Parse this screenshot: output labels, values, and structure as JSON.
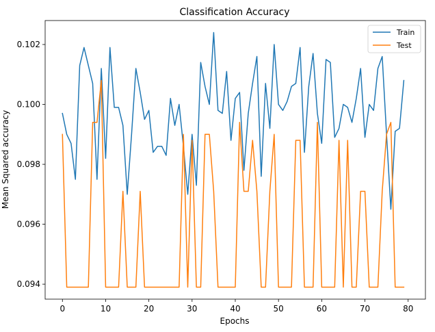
{
  "chart_data": {
    "type": "line",
    "title": "Classification Accuracy",
    "xlabel": "Epochs",
    "ylabel": "Mean Squared accuracy",
    "xlim": [
      -4,
      84
    ],
    "ylim": [
      0.0935,
      0.1028
    ],
    "xticks": [
      0,
      10,
      20,
      30,
      40,
      50,
      60,
      70,
      80
    ],
    "yticks": [
      0.094,
      0.096,
      0.098,
      0.1,
      0.102
    ],
    "ytick_labels": [
      "0.094",
      "0.096",
      "0.098",
      "0.100",
      "0.102"
    ],
    "grid": false,
    "legend_position": "top-right",
    "x": [
      0,
      1,
      2,
      3,
      4,
      5,
      6,
      7,
      8,
      9,
      10,
      11,
      12,
      13,
      14,
      15,
      16,
      17,
      18,
      19,
      20,
      21,
      22,
      23,
      24,
      25,
      26,
      27,
      28,
      29,
      30,
      31,
      32,
      33,
      34,
      35,
      36,
      37,
      38,
      39,
      40,
      41,
      42,
      43,
      44,
      45,
      46,
      47,
      48,
      49,
      50,
      51,
      52,
      53,
      54,
      55,
      56,
      57,
      58,
      59,
      60,
      61,
      62,
      63,
      64,
      65,
      66,
      67,
      68,
      69,
      70,
      71,
      72,
      73,
      74,
      75,
      76,
      77,
      78,
      79
    ],
    "series": [
      {
        "name": "Train",
        "color": "#1f77b4",
        "values": [
          0.0997,
          0.099,
          0.0987,
          0.0975,
          0.1013,
          0.1019,
          0.1013,
          0.1007,
          0.0975,
          0.1012,
          0.0982,
          0.1019,
          0.0999,
          0.0999,
          0.0993,
          0.097,
          0.099,
          0.1012,
          0.1004,
          0.0995,
          0.0998,
          0.0984,
          0.0986,
          0.0986,
          0.0983,
          0.1002,
          0.0993,
          0.1,
          0.0986,
          0.097,
          0.099,
          0.0973,
          0.1014,
          0.1006,
          0.1,
          0.1024,
          0.0998,
          0.0997,
          0.1011,
          0.0988,
          0.1002,
          0.1004,
          0.0978,
          0.0997,
          0.1007,
          0.1016,
          0.0976,
          0.1007,
          0.0992,
          0.102,
          0.1,
          0.0998,
          0.1001,
          0.1006,
          0.1007,
          0.1019,
          0.0984,
          0.1006,
          0.1017,
          0.0997,
          0.0987,
          0.1015,
          0.1014,
          0.0989,
          0.0992,
          0.1,
          0.0999,
          0.0994,
          0.1002,
          0.1012,
          0.0989,
          0.1,
          0.0998,
          0.1012,
          0.1016,
          0.099,
          0.0965,
          0.0991,
          0.0992,
          0.1008
        ]
      },
      {
        "name": "Test",
        "color": "#ff7f0e",
        "values": [
          0.099,
          0.0939,
          0.0939,
          0.0939,
          0.0939,
          0.0939,
          0.0939,
          0.0994,
          0.0994,
          0.1008,
          0.0939,
          0.0939,
          0.0939,
          0.0939,
          0.0971,
          0.0939,
          0.0939,
          0.0939,
          0.0971,
          0.0939,
          0.0939,
          0.0939,
          0.0939,
          0.0939,
          0.0939,
          0.0939,
          0.0939,
          0.0939,
          0.099,
          0.0939,
          0.0988,
          0.0939,
          0.0939,
          0.099,
          0.099,
          0.0971,
          0.0939,
          0.0939,
          0.0939,
          0.0939,
          0.0939,
          0.0994,
          0.0971,
          0.0971,
          0.0988,
          0.0971,
          0.0939,
          0.0939,
          0.0971,
          0.099,
          0.0939,
          0.0939,
          0.0939,
          0.0939,
          0.0988,
          0.0988,
          0.0939,
          0.0939,
          0.0939,
          0.0994,
          0.0939,
          0.0939,
          0.0939,
          0.0939,
          0.0988,
          0.0939,
          0.0988,
          0.0939,
          0.0939,
          0.0971,
          0.0971,
          0.0939,
          0.0939,
          0.0939,
          0.0971,
          0.099,
          0.0994,
          0.0939,
          0.0939,
          0.0939
        ]
      }
    ]
  }
}
